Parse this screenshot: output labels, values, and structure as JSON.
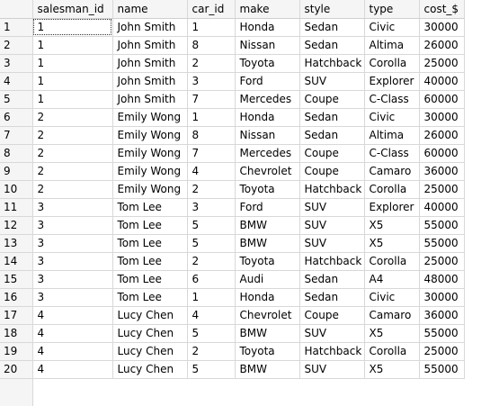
{
  "columns": [
    "salesman_id",
    "name",
    "car_id",
    "make",
    "style",
    "type",
    "cost_$"
  ],
  "rows": [
    {
      "n": "1",
      "cells": [
        "1",
        "John Smith",
        "1",
        "Honda",
        "Sedan",
        "Civic",
        "30000"
      ]
    },
    {
      "n": "2",
      "cells": [
        "1",
        "John Smith",
        "8",
        "Nissan",
        "Sedan",
        "Altima",
        "26000"
      ]
    },
    {
      "n": "3",
      "cells": [
        "1",
        "John Smith",
        "2",
        "Toyota",
        "Hatchback",
        "Corolla",
        "25000"
      ]
    },
    {
      "n": "4",
      "cells": [
        "1",
        "John Smith",
        "3",
        "Ford",
        "SUV",
        "Explorer",
        "40000"
      ]
    },
    {
      "n": "5",
      "cells": [
        "1",
        "John Smith",
        "7",
        "Mercedes",
        "Coupe",
        "C-Class",
        "60000"
      ]
    },
    {
      "n": "6",
      "cells": [
        "2",
        "Emily Wong",
        "1",
        "Honda",
        "Sedan",
        "Civic",
        "30000"
      ]
    },
    {
      "n": "7",
      "cells": [
        "2",
        "Emily Wong",
        "8",
        "Nissan",
        "Sedan",
        "Altima",
        "26000"
      ]
    },
    {
      "n": "8",
      "cells": [
        "2",
        "Emily Wong",
        "7",
        "Mercedes",
        "Coupe",
        "C-Class",
        "60000"
      ]
    },
    {
      "n": "9",
      "cells": [
        "2",
        "Emily Wong",
        "4",
        "Chevrolet",
        "Coupe",
        "Camaro",
        "36000"
      ]
    },
    {
      "n": "10",
      "cells": [
        "2",
        "Emily Wong",
        "2",
        "Toyota",
        "Hatchback",
        "Corolla",
        "25000"
      ]
    },
    {
      "n": "11",
      "cells": [
        "3",
        "Tom Lee",
        "3",
        "Ford",
        "SUV",
        "Explorer",
        "40000"
      ]
    },
    {
      "n": "12",
      "cells": [
        "3",
        "Tom Lee",
        "5",
        "BMW",
        "SUV",
        "X5",
        "55000"
      ]
    },
    {
      "n": "13",
      "cells": [
        "3",
        "Tom Lee",
        "5",
        "BMW",
        "SUV",
        "X5",
        "55000"
      ]
    },
    {
      "n": "14",
      "cells": [
        "3",
        "Tom Lee",
        "2",
        "Toyota",
        "Hatchback",
        "Corolla",
        "25000"
      ]
    },
    {
      "n": "15",
      "cells": [
        "3",
        "Tom Lee",
        "6",
        "Audi",
        "Sedan",
        "A4",
        "48000"
      ]
    },
    {
      "n": "16",
      "cells": [
        "3",
        "Tom Lee",
        "1",
        "Honda",
        "Sedan",
        "Civic",
        "30000"
      ]
    },
    {
      "n": "17",
      "cells": [
        "4",
        "Lucy Chen",
        "4",
        "Chevrolet",
        "Coupe",
        "Camaro",
        "36000"
      ]
    },
    {
      "n": "18",
      "cells": [
        "4",
        "Lucy Chen",
        "5",
        "BMW",
        "SUV",
        "X5",
        "55000"
      ]
    },
    {
      "n": "19",
      "cells": [
        "4",
        "Lucy Chen",
        "2",
        "Toyota",
        "Hatchback",
        "Corolla",
        "25000"
      ]
    },
    {
      "n": "20",
      "cells": [
        "4",
        "Lucy Chen",
        "5",
        "BMW",
        "SUV",
        "X5",
        "55000"
      ]
    }
  ]
}
